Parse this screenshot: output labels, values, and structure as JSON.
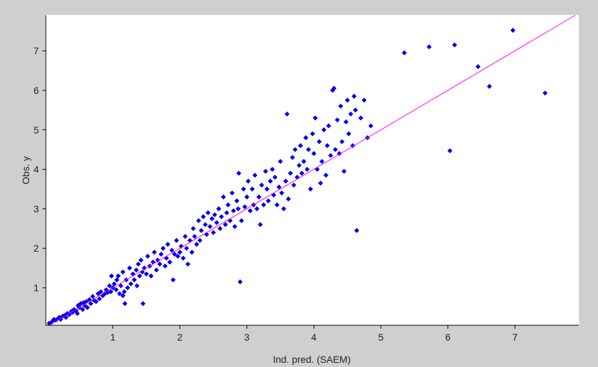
{
  "chart_data": {
    "type": "scatter",
    "title": "",
    "xlabel": "Ind. pred. (SAEM)",
    "ylabel": "Obs. y",
    "xlim": [
      0.0,
      7.95
    ],
    "ylim": [
      0.05,
      7.9
    ],
    "xticks": [
      1,
      2,
      3,
      4,
      5,
      6,
      7
    ],
    "yticks": [
      1,
      2,
      3,
      4,
      5,
      6,
      7
    ],
    "grid": false,
    "legend": "none",
    "colors": {
      "points": "#0000ee",
      "identity_line": "#ff00ff",
      "plot_background": "#ffffff",
      "figure_background": "#cfcfcf"
    },
    "series": [
      {
        "marker": "diamond",
        "points": [
          [
            0.05,
            0.1
          ],
          [
            0.08,
            0.12
          ],
          [
            0.1,
            0.15
          ],
          [
            0.12,
            0.2
          ],
          [
            0.15,
            0.18
          ],
          [
            0.18,
            0.22
          ],
          [
            0.2,
            0.25
          ],
          [
            0.22,
            0.2
          ],
          [
            0.25,
            0.28
          ],
          [
            0.28,
            0.3
          ],
          [
            0.3,
            0.25
          ],
          [
            0.32,
            0.35
          ],
          [
            0.35,
            0.32
          ],
          [
            0.38,
            0.4
          ],
          [
            0.4,
            0.38
          ],
          [
            0.42,
            0.45
          ],
          [
            0.45,
            0.42
          ],
          [
            0.47,
            0.35
          ],
          [
            0.48,
            0.55
          ],
          [
            0.5,
            0.5
          ],
          [
            0.52,
            0.6
          ],
          [
            0.55,
            0.45
          ],
          [
            0.56,
            0.62
          ],
          [
            0.58,
            0.55
          ],
          [
            0.6,
            0.65
          ],
          [
            0.62,
            0.5
          ],
          [
            0.65,
            0.7
          ],
          [
            0.67,
            0.6
          ],
          [
            0.7,
            0.78
          ],
          [
            0.72,
            0.68
          ],
          [
            0.75,
            0.65
          ],
          [
            0.78,
            0.85
          ],
          [
            0.8,
            0.72
          ],
          [
            0.82,
            0.9
          ],
          [
            0.85,
            0.8
          ],
          [
            0.88,
            0.85
          ],
          [
            0.9,
            0.95
          ],
          [
            0.92,
            0.88
          ],
          [
            0.95,
            1.05
          ],
          [
            0.97,
            0.9
          ],
          [
            0.98,
            1.3
          ],
          [
            1.0,
            1.0
          ],
          [
            1.02,
            1.1
          ],
          [
            1.05,
            0.95
          ],
          [
            1.06,
            1.2
          ],
          [
            1.08,
            1.3
          ],
          [
            1.1,
            0.85
          ],
          [
            1.12,
            1.05
          ],
          [
            1.15,
            0.8
          ],
          [
            1.15,
            1.4
          ],
          [
            1.17,
            0.9
          ],
          [
            1.18,
            0.6
          ],
          [
            1.2,
            1.2
          ],
          [
            1.22,
            1.0
          ],
          [
            1.25,
            1.5
          ],
          [
            1.27,
            1.1
          ],
          [
            1.3,
            1.35
          ],
          [
            1.32,
            1.2
          ],
          [
            1.35,
            1.45
          ],
          [
            1.36,
            1.05
          ],
          [
            1.38,
            1.6
          ],
          [
            1.4,
            1.3
          ],
          [
            1.42,
            1.7
          ],
          [
            1.44,
            1.4
          ],
          [
            1.45,
            0.6
          ],
          [
            1.47,
            1.5
          ],
          [
            1.5,
            1.35
          ],
          [
            1.52,
            1.8
          ],
          [
            1.55,
            1.55
          ],
          [
            1.57,
            1.3
          ],
          [
            1.6,
            1.65
          ],
          [
            1.62,
            1.9
          ],
          [
            1.65,
            1.45
          ],
          [
            1.67,
            1.7
          ],
          [
            1.7,
            1.6
          ],
          [
            1.72,
            1.85
          ],
          [
            1.75,
            2.0
          ],
          [
            1.78,
            1.55
          ],
          [
            1.8,
            1.75
          ],
          [
            1.82,
            2.1
          ],
          [
            1.85,
            1.65
          ],
          [
            1.88,
            1.95
          ],
          [
            1.9,
            1.2
          ],
          [
            1.92,
            1.85
          ],
          [
            1.95,
            2.2
          ],
          [
            1.97,
            1.8
          ],
          [
            2.0,
            1.9
          ],
          [
            2.02,
            2.05
          ],
          [
            2.05,
            1.75
          ],
          [
            2.08,
            2.3
          ],
          [
            2.1,
            2.0
          ],
          [
            2.12,
            1.6
          ],
          [
            2.15,
            2.2
          ],
          [
            2.18,
            1.9
          ],
          [
            2.2,
            2.5
          ],
          [
            2.22,
            2.3
          ],
          [
            2.25,
            2.1
          ],
          [
            2.28,
            2.7
          ],
          [
            2.3,
            2.2
          ],
          [
            2.32,
            2.45
          ],
          [
            2.35,
            2.8
          ],
          [
            2.38,
            2.6
          ],
          [
            2.4,
            2.35
          ],
          [
            2.42,
            2.9
          ],
          [
            2.45,
            2.55
          ],
          [
            2.48,
            2.75
          ],
          [
            2.5,
            2.4
          ],
          [
            2.52,
            2.85
          ],
          [
            2.55,
            2.65
          ],
          [
            2.58,
            3.0
          ],
          [
            2.6,
            2.5
          ],
          [
            2.62,
            2.8
          ],
          [
            2.65,
            3.3
          ],
          [
            2.68,
            2.6
          ],
          [
            2.7,
            2.9
          ],
          [
            2.72,
            3.1
          ],
          [
            2.75,
            2.7
          ],
          [
            2.78,
            3.4
          ],
          [
            2.8,
            2.95
          ],
          [
            2.82,
            2.55
          ],
          [
            2.85,
            3.2
          ],
          [
            2.87,
            3.0
          ],
          [
            2.88,
            3.9
          ],
          [
            2.9,
            1.15
          ],
          [
            2.92,
            2.7
          ],
          [
            2.95,
            3.5
          ],
          [
            2.97,
            3.05
          ],
          [
            3.0,
            3.3
          ],
          [
            3.02,
            3.7
          ],
          [
            3.05,
            2.95
          ],
          [
            3.08,
            3.5
          ],
          [
            3.1,
            3.1
          ],
          [
            3.12,
            3.85
          ],
          [
            3.15,
            3.0
          ],
          [
            3.18,
            3.3
          ],
          [
            3.2,
            2.6
          ],
          [
            3.22,
            3.6
          ],
          [
            3.25,
            3.1
          ],
          [
            3.28,
            3.95
          ],
          [
            3.3,
            3.5
          ],
          [
            3.32,
            3.2
          ],
          [
            3.35,
            3.7
          ],
          [
            3.38,
            4.0
          ],
          [
            3.4,
            3.35
          ],
          [
            3.42,
            3.8
          ],
          [
            3.45,
            3.1
          ],
          [
            3.48,
            3.55
          ],
          [
            3.5,
            4.2
          ],
          [
            3.52,
            3.4
          ],
          [
            3.55,
            3.0
          ],
          [
            3.58,
            3.7
          ],
          [
            3.6,
            5.4
          ],
          [
            3.62,
            3.25
          ],
          [
            3.65,
            3.9
          ],
          [
            3.68,
            4.3
          ],
          [
            3.7,
            3.6
          ],
          [
            3.72,
            4.5
          ],
          [
            3.75,
            3.8
          ],
          [
            3.78,
            4.1
          ],
          [
            3.8,
            4.6
          ],
          [
            3.82,
            3.9
          ],
          [
            3.85,
            4.2
          ],
          [
            3.88,
            4.8
          ],
          [
            3.9,
            4.0
          ],
          [
            3.92,
            4.5
          ],
          [
            3.95,
            3.5
          ],
          [
            3.98,
            4.9
          ],
          [
            4.0,
            4.4
          ],
          [
            4.02,
            5.3
          ],
          [
            4.05,
            4.0
          ],
          [
            4.08,
            4.7
          ],
          [
            4.1,
            3.65
          ],
          [
            4.12,
            4.2
          ],
          [
            4.15,
            5.0
          ],
          [
            4.18,
            3.85
          ],
          [
            4.2,
            4.6
          ],
          [
            4.22,
            5.1
          ],
          [
            4.25,
            4.35
          ],
          [
            4.28,
            6.0
          ],
          [
            4.3,
            6.05
          ],
          [
            4.32,
            4.5
          ],
          [
            4.35,
            5.25
          ],
          [
            4.38,
            4.4
          ],
          [
            4.4,
            5.6
          ],
          [
            4.42,
            4.7
          ],
          [
            4.45,
            3.95
          ],
          [
            4.48,
            5.2
          ],
          [
            4.5,
            5.75
          ],
          [
            4.52,
            4.9
          ],
          [
            4.55,
            5.4
          ],
          [
            4.58,
            4.6
          ],
          [
            4.6,
            5.85
          ],
          [
            4.62,
            5.5
          ],
          [
            4.64,
            2.45
          ],
          [
            4.7,
            5.3
          ],
          [
            4.75,
            5.75
          ],
          [
            4.8,
            4.8
          ],
          [
            4.85,
            5.1
          ],
          [
            5.35,
            6.95
          ],
          [
            5.72,
            7.1
          ],
          [
            6.03,
            4.47
          ],
          [
            6.1,
            7.15
          ],
          [
            6.45,
            6.6
          ],
          [
            6.62,
            6.1
          ],
          [
            6.97,
            7.52
          ],
          [
            7.45,
            5.93
          ]
        ]
      }
    ],
    "reference_line": {
      "from": [
        0.0,
        0.0
      ],
      "to": [
        7.95,
        7.95
      ]
    }
  }
}
